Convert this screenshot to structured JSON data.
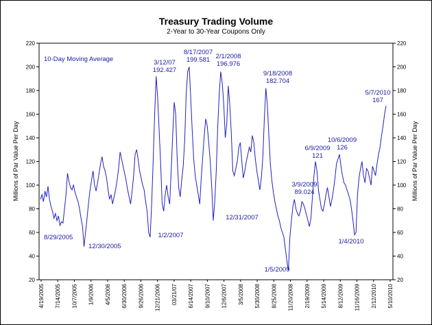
{
  "chart_data": {
    "type": "line",
    "title": "Treasury Trading Volume",
    "subtitle": "2-Year to 30-Year Coupons Only",
    "ylabel": "Millions of Par Value Per Day",
    "ylabel_right": "Millions of Par Value Per Day",
    "ylim": [
      20,
      220
    ],
    "yticks": [
      20,
      40,
      60,
      80,
      100,
      120,
      140,
      160,
      180,
      200,
      220
    ],
    "grid": false,
    "legend_text": "10-Day Moving Average",
    "line_color": "#1f1fbf",
    "x_tick_labels": [
      "4/19/2005",
      "7/14/2005",
      "10/7/2005",
      "1/9/2006",
      "4/5/2006",
      "6/30/2006",
      "9/26/2006",
      "12/21/2006",
      "03/21/07",
      "6/14/2007",
      "9/10/2007",
      "12/6/2007",
      "3/5/2008",
      "5/30/2008",
      "8/25/2008",
      "11/20/2008",
      "2/19/2009",
      "5/14/2009",
      "8/12/2009",
      "11/16/2009",
      "2/12/2010",
      "5/10/2010"
    ],
    "series": [
      {
        "values": [
          88,
          92,
          86,
          95,
          90,
          99,
          88,
          82,
          78,
          72,
          76,
          70,
          74,
          66,
          69,
          68,
          80,
          92,
          110,
          103,
          98,
          96,
          100,
          94,
          90,
          86,
          80,
          72,
          65,
          48,
          60,
          72,
          85,
          96,
          104,
          112,
          100,
          95,
          102,
          110,
          118,
          124,
          116,
          112,
          106,
          96,
          88,
          92,
          84,
          90,
          96,
          104,
          114,
          128,
          122,
          116,
          110,
          104,
          96,
          90,
          84,
          95,
          108,
          126,
          130,
          122,
          112,
          106,
          100,
          96,
          86,
          78,
          60,
          56,
          84,
          120,
          160,
          192,
          174,
          146,
          118,
          84,
          78,
          92,
          100,
          90,
          84,
          112,
          142,
          170,
          160,
          122,
          98,
          90,
          104,
          116,
          138,
          178,
          196,
          200,
          174,
          146,
          122,
          108,
          100,
          92,
          84,
          106,
          124,
          142,
          156,
          150,
          136,
          120,
          98,
          70,
          86,
          112,
          150,
          178,
          196,
          186,
          168,
          140,
          152,
          184,
          168,
          144,
          112,
          108,
          114,
          120,
          132,
          136,
          120,
          106,
          112,
          120,
          126,
          132,
          128,
          142,
          136,
          122,
          112,
          104,
          96,
          106,
          124,
          156,
          182,
          168,
          142,
          118,
          104,
          94,
          86,
          80,
          74,
          70,
          64,
          60,
          56,
          46,
          36,
          28,
          56,
          70,
          82,
          88,
          80,
          76,
          74,
          78,
          86,
          84,
          80,
          75,
          70,
          65,
          72,
          90,
          108,
          120,
          112,
          96,
          88,
          80,
          78,
          84,
          92,
          98,
          90,
          82,
          88,
          96,
          106,
          118,
          122,
          126,
          116,
          108,
          102,
          100,
          96,
          92,
          88,
          80,
          70,
          58,
          60,
          92,
          106,
          114,
          120,
          108,
          102,
          114,
          112,
          106,
          100,
          116,
          112,
          108,
          118,
          126,
          132,
          142,
          150,
          160,
          167
        ]
      }
    ],
    "annotations": [
      {
        "lines": [
          "8/29/2005"
        ]
      },
      {
        "lines": [
          "12/30/2005"
        ]
      },
      {
        "lines": [
          "3/12/07",
          "192.427"
        ]
      },
      {
        "lines": [
          "1/2/2007"
        ]
      },
      {
        "lines": [
          "8/17/2007",
          "199.581"
        ]
      },
      {
        "lines": [
          "2/1/2008",
          "196.976"
        ]
      },
      {
        "lines": [
          "12/31/2007"
        ]
      },
      {
        "lines": [
          "9/18/2008",
          "182.704"
        ]
      },
      {
        "lines": [
          "1/5/2009"
        ]
      },
      {
        "lines": [
          "3/9/2009",
          "89.024"
        ]
      },
      {
        "lines": [
          "6/9/2009",
          "121"
        ]
      },
      {
        "lines": [
          "10/6/2009",
          "126"
        ]
      },
      {
        "lines": [
          "1/4/2010"
        ]
      },
      {
        "lines": [
          "5/7/2010",
          "167"
        ]
      }
    ]
  }
}
